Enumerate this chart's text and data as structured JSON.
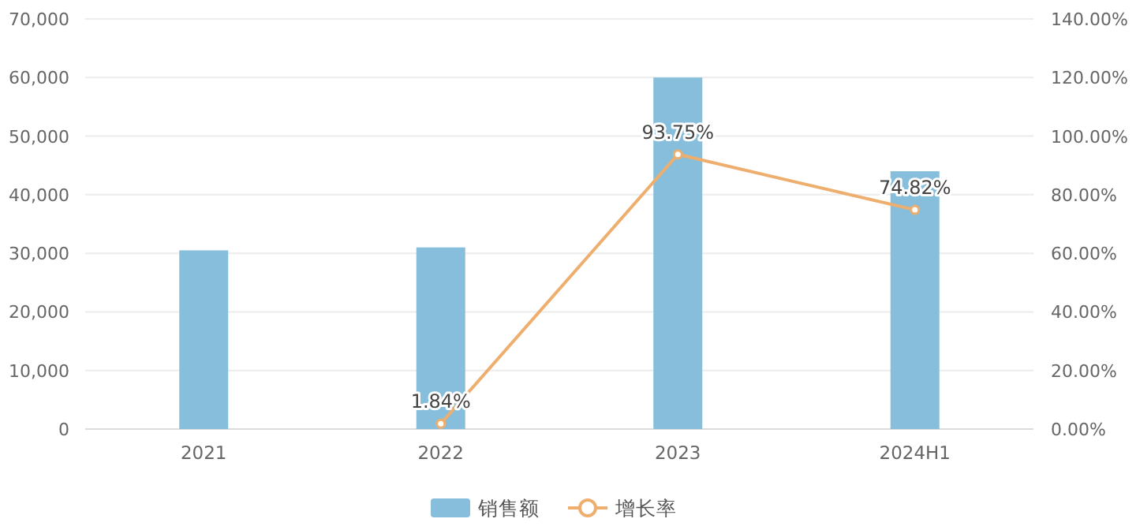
{
  "chart_data": {
    "type": "bar",
    "categories": [
      "2021",
      "2022",
      "2023",
      "2024H1"
    ],
    "series": [
      {
        "name": "销售额",
        "color": "#86bedb",
        "values": [
          30500,
          31000,
          60000,
          44000
        ]
      },
      {
        "name": "增长率",
        "type": "line",
        "axis": "y2",
        "color": "#eeae6e",
        "values": [
          null,
          1.84,
          93.75,
          74.82
        ],
        "value_labels": [
          null,
          "1.84%",
          "93.75%",
          "74.82%"
        ]
      }
    ],
    "ylim": [
      0,
      70000
    ],
    "yticks": [
      {
        "value": 0,
        "label": "0"
      },
      {
        "value": 10000,
        "label": "10,000"
      },
      {
        "value": 20000,
        "label": "20,000"
      },
      {
        "value": 30000,
        "label": "30,000"
      },
      {
        "value": 40000,
        "label": "40,000"
      },
      {
        "value": 50000,
        "label": "50,000"
      },
      {
        "value": 60000,
        "label": "60,000"
      },
      {
        "value": 70000,
        "label": "70,000"
      }
    ],
    "y2lim": [
      0,
      140
    ],
    "y2ticks": [
      {
        "value": 0,
        "label": "0.00%"
      },
      {
        "value": 20,
        "label": "20.00%"
      },
      {
        "value": 40,
        "label": "40.00%"
      },
      {
        "value": 60,
        "label": "60.00%"
      },
      {
        "value": 80,
        "label": "80.00%"
      },
      {
        "value": 100,
        "label": "100.00%"
      },
      {
        "value": 120,
        "label": "120.00%"
      },
      {
        "value": 140,
        "label": "140.00%"
      }
    ],
    "grid": "y",
    "legend": "bottom",
    "marker": "circle",
    "line_style": "solid"
  }
}
